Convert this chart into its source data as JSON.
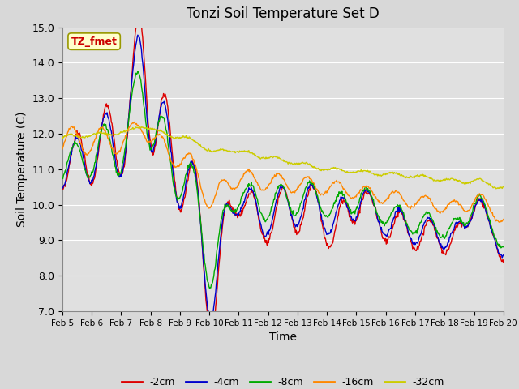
{
  "title": "Tonzi Soil Temperature Set D",
  "xlabel": "Time",
  "ylabel": "Soil Temperature (C)",
  "ylim": [
    7.0,
    15.0
  ],
  "yticks": [
    7.0,
    8.0,
    9.0,
    10.0,
    11.0,
    12.0,
    13.0,
    14.0,
    15.0
  ],
  "xtick_labels": [
    "Feb 5",
    "Feb 6",
    "Feb 7",
    "Feb 8",
    "Feb 9",
    "Feb 10",
    "Feb 11",
    "Feb 12",
    "Feb 13",
    "Feb 14",
    "Feb 15",
    "Feb 16",
    "Feb 17",
    "Feb 18",
    "Feb 19",
    "Feb 20"
  ],
  "annotation_text": "TZ_fmet",
  "annotation_color": "#cc0000",
  "annotation_bg": "#ffffcc",
  "annotation_edge": "#999900",
  "colors": {
    "-2cm": "#dd0000",
    "-4cm": "#0000cc",
    "-8cm": "#00aa00",
    "-16cm": "#ff8800",
    "-32cm": "#cccc00"
  },
  "legend_labels": [
    "-2cm",
    "-4cm",
    "-8cm",
    "-16cm",
    "-32cm"
  ],
  "fig_bg_color": "#d8d8d8",
  "plot_bg_color": "#e0e0e0",
  "grid_color": "#ffffff",
  "n_points": 720
}
